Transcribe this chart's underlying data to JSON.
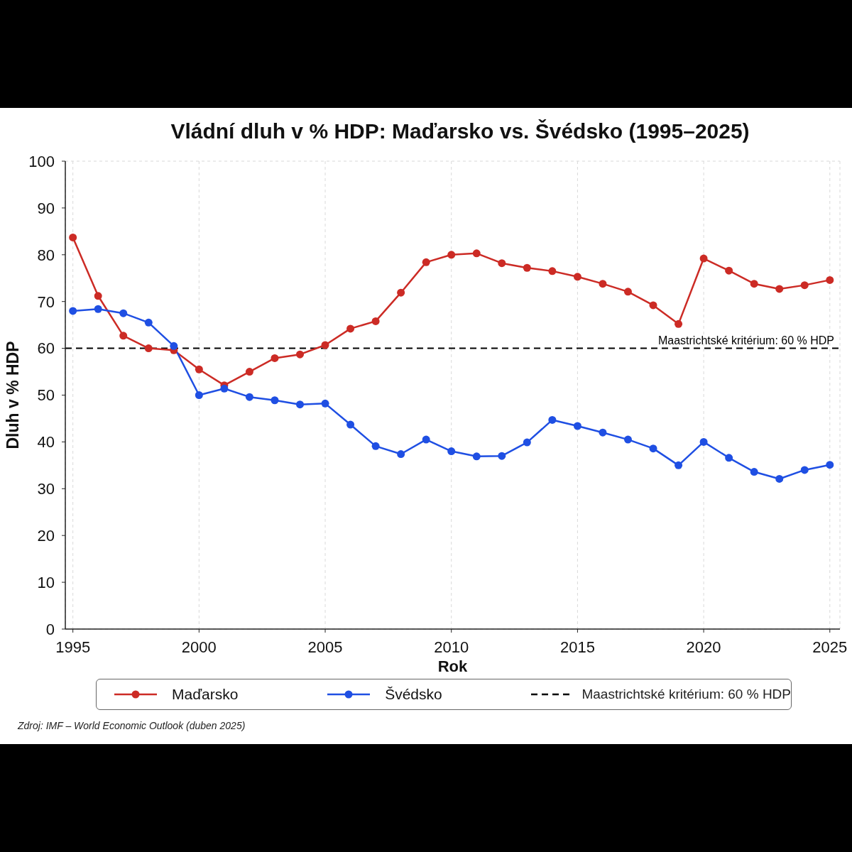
{
  "chart_data": {
    "type": "line",
    "title": "Vládní dluh v % HDP: Maďarsko vs. Švédsko (1995–2025)",
    "xlabel": "Rok",
    "ylabel": "Dluh v % HDP",
    "x": [
      1995,
      1996,
      1997,
      1998,
      1999,
      2000,
      2001,
      2002,
      2003,
      2004,
      2005,
      2006,
      2007,
      2008,
      2009,
      2010,
      2011,
      2012,
      2013,
      2014,
      2015,
      2016,
      2017,
      2018,
      2019,
      2020,
      2021,
      2022,
      2023,
      2024,
      2025
    ],
    "series": [
      {
        "name": "Maďarsko",
        "color": "#cc2b25",
        "values": [
          83.7,
          71.2,
          62.7,
          60.0,
          59.6,
          55.5,
          52.1,
          55.0,
          57.9,
          58.7,
          60.7,
          64.2,
          65.8,
          71.9,
          78.4,
          80.0,
          80.3,
          78.2,
          77.2,
          76.5,
          75.3,
          73.8,
          72.1,
          69.2,
          65.2,
          79.2,
          76.6,
          73.8,
          72.7,
          73.5,
          74.6
        ]
      },
      {
        "name": "Švédsko",
        "color": "#1f4fe3",
        "values": [
          68.0,
          68.4,
          67.5,
          65.5,
          60.5,
          50.0,
          51.4,
          49.6,
          48.9,
          48.0,
          48.2,
          43.7,
          39.1,
          37.4,
          40.5,
          38.0,
          36.9,
          37.0,
          39.9,
          44.7,
          43.4,
          42.0,
          40.5,
          38.6,
          35.0,
          40.0,
          36.6,
          33.6,
          32.1,
          34.0,
          35.1
        ]
      }
    ],
    "xlim": [
      1994.7,
      2025.4
    ],
    "xticks": [
      1995,
      2000,
      2005,
      2010,
      2015,
      2020,
      2025
    ],
    "ylim": [
      0,
      100
    ],
    "yticks": [
      0,
      10,
      20,
      30,
      40,
      50,
      60,
      70,
      80,
      90,
      100
    ],
    "grid": true,
    "legend": "bottom",
    "marker": "circle",
    "line_style": "solid",
    "ref_lines": [
      {
        "axis": "y",
        "value": 60,
        "label": "Maastrichtské kritérium: 60 % HDP",
        "color": "#000000",
        "line_style": "dashed"
      }
    ],
    "annotations": [
      "Zdroj: IMF – World Economic Outlook (duben 2025)"
    ]
  }
}
